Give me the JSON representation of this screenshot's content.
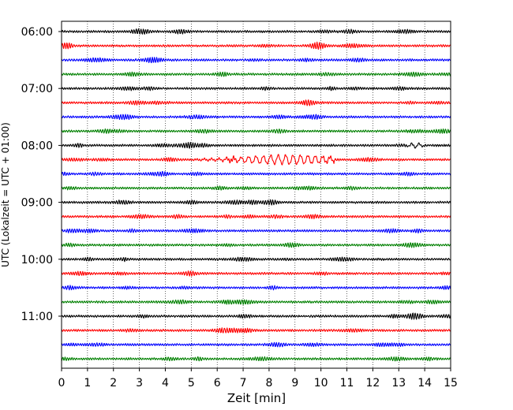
{
  "chart_data": {
    "type": "line",
    "title": "",
    "xlabel": "Zeit  [min]",
    "ylabel": "UTC (Lokalzeit = UTC + 01:00)",
    "xlim": [
      0,
      15
    ],
    "x_ticks": [
      0,
      1,
      2,
      3,
      4,
      5,
      6,
      7,
      8,
      9,
      10,
      11,
      12,
      13,
      14,
      15
    ],
    "y_tick_labels": [
      "06:00",
      "07:00",
      "08:00",
      "09:00",
      "10:00",
      "11:00"
    ],
    "vertical_grid": true,
    "grid_style": "dotted",
    "trace_colors": [
      "#000000",
      "#ff0000",
      "#0000ff",
      "#008000"
    ],
    "trace_interval_minutes": 15,
    "traces": [
      {
        "start": "06:00",
        "color": "#000000"
      },
      {
        "start": "06:15",
        "color": "#ff0000"
      },
      {
        "start": "06:30",
        "color": "#0000ff"
      },
      {
        "start": "06:45",
        "color": "#008000"
      },
      {
        "start": "07:00",
        "color": "#000000"
      },
      {
        "start": "07:15",
        "color": "#ff0000"
      },
      {
        "start": "07:30",
        "color": "#0000ff"
      },
      {
        "start": "07:45",
        "color": "#008000"
      },
      {
        "start": "08:00",
        "color": "#000000",
        "event": {
          "from": 13.3,
          "to": 14.0,
          "amplitude": 1.8
        }
      },
      {
        "start": "08:15",
        "color": "#ff0000",
        "event": {
          "from": 5.0,
          "to": 10.5,
          "amplitude": 3.6,
          "peak": 8.7
        }
      },
      {
        "start": "08:30",
        "color": "#0000ff"
      },
      {
        "start": "08:45",
        "color": "#008000"
      },
      {
        "start": "09:00",
        "color": "#000000"
      },
      {
        "start": "09:15",
        "color": "#ff0000"
      },
      {
        "start": "09:30",
        "color": "#0000ff"
      },
      {
        "start": "09:45",
        "color": "#008000"
      },
      {
        "start": "10:00",
        "color": "#000000"
      },
      {
        "start": "10:15",
        "color": "#ff0000"
      },
      {
        "start": "10:30",
        "color": "#0000ff"
      },
      {
        "start": "10:45",
        "color": "#008000"
      },
      {
        "start": "11:00",
        "color": "#000000"
      },
      {
        "start": "11:15",
        "color": "#ff0000"
      },
      {
        "start": "11:30",
        "color": "#0000ff"
      },
      {
        "start": "11:45",
        "color": "#008000"
      }
    ]
  }
}
